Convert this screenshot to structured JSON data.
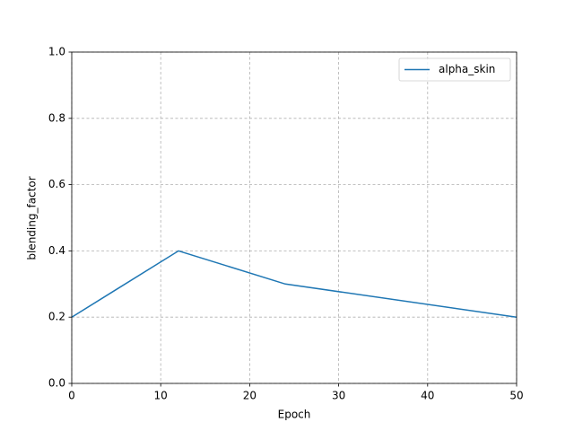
{
  "chart_data": {
    "type": "line",
    "x_label": "Epoch",
    "y_label": "blending_factor",
    "x": [
      0,
      12,
      24,
      50
    ],
    "series": [
      {
        "name": "alpha_skin",
        "color": "#1f77b4",
        "values": [
          0.2,
          0.4,
          0.3,
          0.2
        ]
      }
    ],
    "xlim": [
      0,
      50
    ],
    "xticks": [
      0,
      10,
      20,
      30,
      40,
      50
    ],
    "ylim": [
      0,
      1
    ],
    "yticks": [
      {
        "value": 0,
        "label": "0.0"
      },
      0.2,
      0.4,
      0.6,
      0.8,
      {
        "value": 1,
        "label": "1.0"
      }
    ],
    "grid": true,
    "legend": "upper right"
  }
}
